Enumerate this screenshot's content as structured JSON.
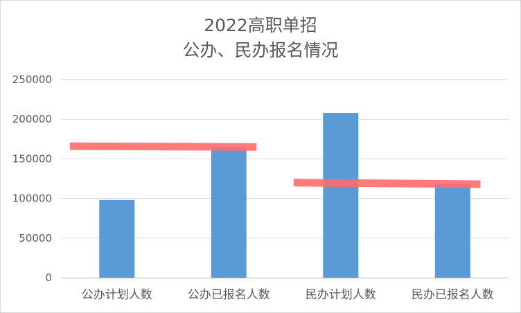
{
  "chart_data": {
    "type": "bar",
    "title": [
      "2022高职单招",
      "公办、民办报名情况"
    ],
    "categories": [
      "公办计划人数",
      "公办已报名人数",
      "民办计划人数",
      "民办已报名人数"
    ],
    "series": [
      {
        "values": [
          98000,
          165000,
          208000,
          118000
        ]
      }
    ],
    "ylim": [
      0,
      250000
    ],
    "yticks": [
      0,
      50000,
      100000,
      150000,
      200000,
      250000
    ],
    "grid": true,
    "legend": "none",
    "colors": {
      "bar": "#5b9bd5",
      "grid": "#d9d9d9",
      "axis": "#bfbfbf",
      "text": "#595959",
      "highlight": "#ff6b6b"
    },
    "annotations": [
      {
        "type": "highlight-line",
        "from_category": 0,
        "to_category": 1,
        "y": 166000,
        "y_end": 165000
      },
      {
        "type": "highlight-line",
        "from_category": 2,
        "to_category": 3,
        "y": 120000,
        "y_end": 118000
      }
    ]
  }
}
